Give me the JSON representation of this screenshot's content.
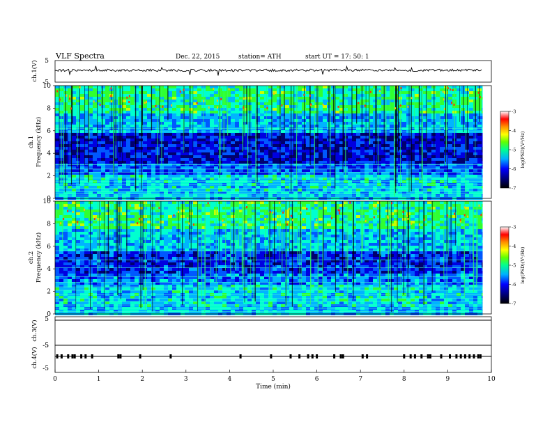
{
  "header": {
    "title": "VLF  Spectra",
    "date": "Dec. 22, 2015",
    "station": "station= ATH",
    "start": "start  UT  =    17: 50: 1"
  },
  "panels": {
    "ch1_wave": {
      "ylabel": "ch.1(V)",
      "ticks": [
        "5",
        "-5"
      ]
    },
    "ch1_spec": {
      "channel": "ch.1",
      "ylabel": "Frequency  (kHz)"
    },
    "ch2_spec": {
      "channel": "ch.2",
      "ylabel": "Frequency  (kHz)"
    },
    "ch3_wave": {
      "ylabel": "ch.3(V)",
      "ticks": [
        "5",
        "-5"
      ]
    },
    "ch4_wave": {
      "ylabel": "ch.4(V)",
      "ticks": [
        "5",
        "-5"
      ]
    }
  },
  "colorbars": {
    "label": "log(PSD)(V²/Hz)",
    "ticks": [
      "-7",
      "-6",
      "-5",
      "-4",
      "-3"
    ],
    "range": [
      -7,
      -3
    ]
  },
  "colors": {
    "low": "#000000",
    "mid_low": "#0000ff",
    "mid": "#00ff90",
    "mid_high": "#ffff00",
    "high": "#ff0000"
  },
  "chart_data": {
    "type": "heatmap",
    "title": "VLF  Spectra",
    "xlabel": "Time  (min)",
    "x_ticks": [
      "0",
      "1",
      "2",
      "3",
      "4",
      "5",
      "6",
      "7",
      "8",
      "9",
      "10"
    ],
    "xlim": [
      0,
      10
    ],
    "data_end_min": 9.8,
    "spectrograms": [
      {
        "channel": "ch.1",
        "ylabel": "Frequency  (kHz)",
        "y_ticks": [
          "0",
          "2",
          "4",
          "6",
          "8",
          "10"
        ],
        "ylim": [
          0,
          10
        ],
        "bands_khz": [
          {
            "f0": 0,
            "f1": 0.5,
            "level": 3.2
          },
          {
            "f0": 0.5,
            "f1": 2.0,
            "level": 3.4
          },
          {
            "f0": 2.0,
            "f1": 3.2,
            "level": 2.0
          },
          {
            "f0": 3.2,
            "f1": 5.8,
            "level": 1.0
          },
          {
            "f0": 5.8,
            "f1": 7.5,
            "level": 3.0
          },
          {
            "f0": 7.5,
            "f1": 10,
            "level": 4.3
          }
        ],
        "lines_khz": [
          0.2,
          0.4,
          0.6,
          0.9,
          1.2,
          1.5,
          1.8,
          2.3,
          2.6,
          3.0,
          5.9,
          6.2
        ]
      },
      {
        "channel": "ch.2",
        "ylabel": "Frequency  (kHz)",
        "y_ticks": [
          "0",
          "2",
          "4",
          "6",
          "8",
          "10"
        ],
        "ylim": [
          0,
          10
        ],
        "bands_khz": [
          {
            "f0": 0,
            "f1": 0.5,
            "level": 3.2
          },
          {
            "f0": 0.5,
            "f1": 2.5,
            "level": 3.5
          },
          {
            "f0": 2.5,
            "f1": 3.5,
            "level": 2.4
          },
          {
            "f0": 3.5,
            "f1": 5.5,
            "level": 1.4
          },
          {
            "f0": 5.5,
            "f1": 7.5,
            "level": 3.2
          },
          {
            "f0": 7.5,
            "f1": 10,
            "level": 4.4
          }
        ],
        "lines_khz": [
          0.2,
          0.5,
          0.8,
          1.1,
          1.4,
          1.7,
          2.1,
          2.4,
          2.8,
          3.3,
          4.1,
          4.8,
          5.6
        ]
      }
    ],
    "ch4_pulse_times_min": [
      0.05,
      0.15,
      0.3,
      0.4,
      0.45,
      0.6,
      0.7,
      0.85,
      1.45,
      1.5,
      1.95,
      2.65,
      4.25,
      4.95,
      5.4,
      5.6,
      5.8,
      5.9,
      6.0,
      6.4,
      6.55,
      6.6,
      7.05,
      7.15,
      8.0,
      8.15,
      8.25,
      8.4,
      8.55,
      8.6,
      8.85,
      9.05,
      9.2,
      9.3,
      9.4,
      9.5,
      9.6,
      9.7,
      9.75
    ]
  }
}
